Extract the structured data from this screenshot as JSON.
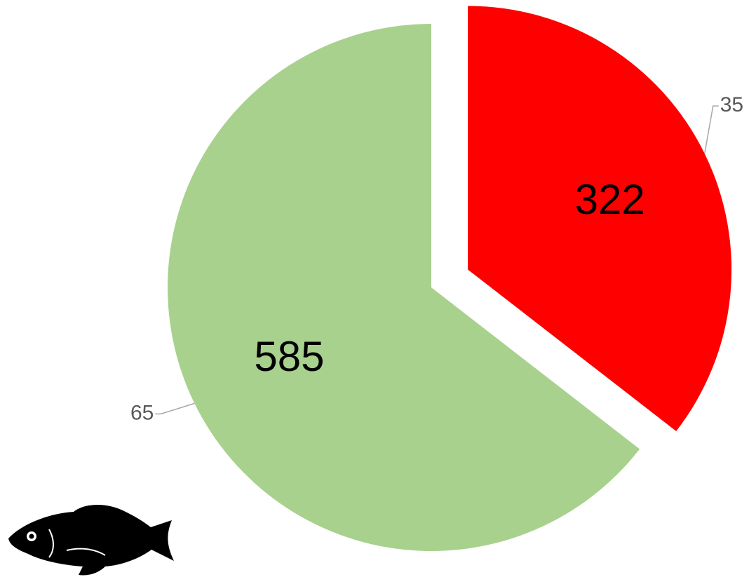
{
  "chart_data": {
    "type": "pie",
    "values": [
      322,
      585
    ],
    "colors": [
      "#ff0000",
      "#a9d18e"
    ],
    "percent_labels": [
      35,
      65
    ],
    "explode": [
      true,
      false
    ]
  }
}
